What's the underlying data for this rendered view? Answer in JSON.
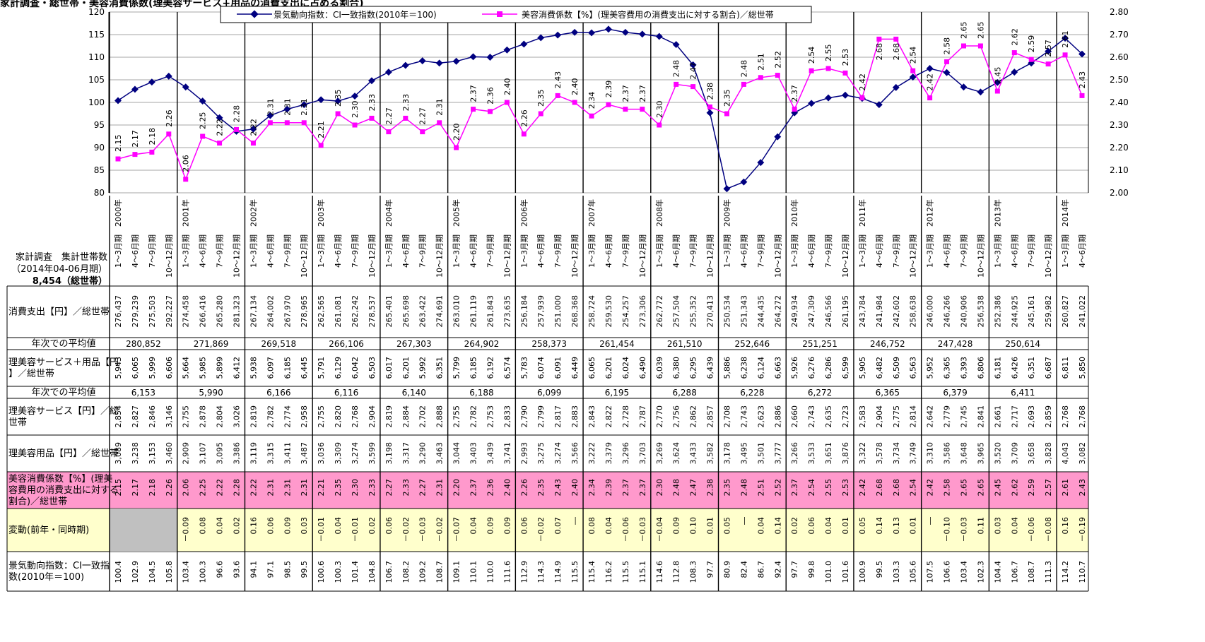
{
  "title": "家計調査・総世帯・美容消費係数(理美容サービス+用品の消費支出に占める割合)",
  "legend": {
    "series1": "景気動向指数：CI一致指数(2010年＝100)",
    "series2": "美容消費係数【%】(理美容費用の消費支出に対する割合)／総世帯"
  },
  "colors": {
    "series1": "#000080",
    "series2": "#FF00FF",
    "pink_row": "#FF99CC",
    "yellow_row": "#FFFFCC",
    "gray_cell": "#C0C0C0"
  },
  "chart_data": {
    "type": "line",
    "left_axis": {
      "min": 80,
      "max": 120,
      "ticks": [
        "80",
        "85",
        "90",
        "95",
        "100",
        "105",
        "110",
        "115",
        "120"
      ]
    },
    "right_axis": {
      "min": 2.0,
      "max": 2.8,
      "ticks": [
        "2.00",
        "2.10",
        "2.20",
        "2.30",
        "2.40",
        "2.50",
        "2.60",
        "2.70",
        "2.80"
      ]
    },
    "series": [
      {
        "name": "景気動向指数：CI一致指数(2010年＝100)",
        "axis": "left",
        "values": [
          100.4,
          102.9,
          104.5,
          105.8,
          103.4,
          100.3,
          96.6,
          93.6,
          94.1,
          97.1,
          98.5,
          99.5,
          100.6,
          100.3,
          101.4,
          104.8,
          106.7,
          108.2,
          109.2,
          108.7,
          109.1,
          110.1,
          110.0,
          111.6,
          112.9,
          114.3,
          114.9,
          115.5,
          115.4,
          116.2,
          115.5,
          115.1,
          114.6,
          112.8,
          108.3,
          97.7,
          80.9,
          82.4,
          86.7,
          92.4,
          97.7,
          99.8,
          101.0,
          101.6,
          100.9,
          99.5,
          103.3,
          105.6,
          107.5,
          106.6,
          103.4,
          102.3,
          104.4,
          106.7,
          108.7,
          111.3,
          114.2,
          110.7
        ]
      },
      {
        "name": "美容消費係数【%】(理美容費用の消費支出に対する割合)／総世帯",
        "axis": "right",
        "labels": [
          "2.15",
          "2.17",
          "2.18",
          "2.26",
          "2.06",
          "2.25",
          "2.22",
          "2.28",
          "2.22",
          "2.31",
          "2.31",
          "2.31",
          "2.21",
          "2.35",
          "2.30",
          "2.33",
          "2.27",
          "2.33",
          "2.27",
          "2.31",
          "2.20",
          "2.37",
          "2.36",
          "2.40",
          "2.26",
          "2.35",
          "2.43",
          "2.40",
          "2.34",
          "2.39",
          "2.37",
          "2.37",
          "2.30",
          "2.48",
          "2.47",
          "2.38",
          "2.35",
          "2.48",
          "2.51",
          "2.52",
          "2.37",
          "2.54",
          "2.55",
          "2.53",
          "2.42",
          "2.68",
          "2.68",
          "2.54",
          "2.42",
          "2.58",
          "2.65",
          "2.65",
          "2.45",
          "2.62",
          "2.59",
          "2.57",
          "2.61",
          "2.43"
        ],
        "values": [
          2.15,
          2.17,
          2.18,
          2.26,
          2.06,
          2.25,
          2.22,
          2.28,
          2.22,
          2.31,
          2.31,
          2.31,
          2.21,
          2.35,
          2.3,
          2.33,
          2.27,
          2.33,
          2.27,
          2.31,
          2.2,
          2.37,
          2.36,
          2.4,
          2.26,
          2.35,
          2.43,
          2.4,
          2.34,
          2.39,
          2.37,
          2.37,
          2.3,
          2.48,
          2.47,
          2.38,
          2.35,
          2.48,
          2.51,
          2.52,
          2.37,
          2.54,
          2.55,
          2.53,
          2.42,
          2.68,
          2.68,
          2.54,
          2.42,
          2.58,
          2.65,
          2.65,
          2.45,
          2.62,
          2.59,
          2.57,
          2.61,
          2.43
        ]
      }
    ]
  },
  "years": [
    "2000年",
    "2001年",
    "2002年",
    "2003年",
    "2004年",
    "2005年",
    "2006年",
    "2007年",
    "2008年",
    "2009年",
    "2010年",
    "2011年",
    "2012年",
    "2013年",
    "2014年"
  ],
  "quarters": [
    "1～3月期",
    "4～6月期",
    "7～9月期",
    "10～12月期"
  ],
  "header_label": {
    "line1": "家計調査　集計世帯数",
    "line2": "（2014年04-06月期）",
    "line3": "8,454（総世帯）"
  },
  "rows": {
    "spending": {
      "label": "消費支出【円】／総世帯",
      "values": [
        "276,437",
        "279,239",
        "275,503",
        "292,227",
        "274,458",
        "266,416",
        "265,280",
        "281,323",
        "267,134",
        "264,002",
        "267,970",
        "278,965",
        "262,565",
        "261,081",
        "262,242",
        "278,537",
        "265,401",
        "265,698",
        "263,422",
        "274,691",
        "263,010",
        "261,119",
        "261,843",
        "273,635",
        "256,184",
        "257,939",
        "251,000",
        "268,368",
        "258,724",
        "259,530",
        "254,257",
        "273,306",
        "262,772",
        "257,504",
        "255,352",
        "270,413",
        "250,534",
        "251,343",
        "244,435",
        "264,272",
        "249,934",
        "247,309",
        "246,566",
        "261,195",
        "243,784",
        "241,984",
        "242,602",
        "258,638",
        "246,000",
        "246,266",
        "240,906",
        "256,538",
        "252,386",
        "244,925",
        "245,161",
        "259,982",
        "260,827",
        "241,022"
      ]
    },
    "spending_avg": {
      "label": "年次での平均値",
      "values": [
        "280,852",
        "271,869",
        "269,518",
        "266,106",
        "267,303",
        "264,902",
        "258,373",
        "261,454",
        "261,510",
        "252,646",
        "251,251",
        "246,752",
        "247,428",
        "250,614"
      ]
    },
    "beauty_total": {
      "label": "理美容サービス＋用品【円】／総世帯",
      "values": [
        "5,943",
        "6,065",
        "5,999",
        "6,606",
        "5,664",
        "5,985",
        "5,899",
        "6,412",
        "5,938",
        "6,097",
        "6,185",
        "6,445",
        "5,791",
        "6,129",
        "6,042",
        "6,503",
        "6,017",
        "6,201",
        "5,992",
        "6,351",
        "5,799",
        "6,185",
        "6,192",
        "6,574",
        "5,783",
        "6,074",
        "6,091",
        "6,449",
        "6,065",
        "6,201",
        "6,024",
        "6,490",
        "6,039",
        "6,380",
        "6,295",
        "6,439",
        "5,886",
        "6,238",
        "6,124",
        "6,663",
        "5,926",
        "6,276",
        "6,286",
        "6,599",
        "5,905",
        "6,482",
        "6,509",
        "6,563",
        "5,952",
        "6,365",
        "6,393",
        "6,806",
        "6,181",
        "6,426",
        "6,351",
        "6,687",
        "6,811",
        "5,850"
      ]
    },
    "beauty_avg": {
      "label": "年次での平均値",
      "values": [
        "6,153",
        "5,990",
        "6,166",
        "6,116",
        "6,140",
        "6,188",
        "6,099",
        "6,195",
        "6,288",
        "6,228",
        "6,272",
        "6,365",
        "6,379",
        "6,411"
      ]
    },
    "service": {
      "label": "理美容サービス【円】／総世帯",
      "values": [
        "2,854",
        "2,827",
        "2,846",
        "3,146",
        "2,755",
        "2,878",
        "2,804",
        "3,026",
        "2,819",
        "2,782",
        "2,774",
        "2,958",
        "2,755",
        "2,820",
        "2,768",
        "2,904",
        "2,819",
        "2,884",
        "2,702",
        "2,888",
        "2,755",
        "2,782",
        "2,753",
        "2,833",
        "2,790",
        "2,799",
        "2,817",
        "2,883",
        "2,843",
        "2,822",
        "2,728",
        "2,787",
        "2,770",
        "2,756",
        "2,862",
        "2,857",
        "2,708",
        "2,743",
        "2,623",
        "2,886",
        "2,660",
        "2,743",
        "2,635",
        "2,723",
        "2,583",
        "2,904",
        "2,775",
        "2,814",
        "2,642",
        "2,779",
        "2,745",
        "2,841",
        "2,661",
        "2,717",
        "2,693",
        "2,859",
        "2,768",
        "2,768"
      ]
    },
    "goods": {
      "label": "理美容用品【円】／総世帯",
      "values": [
        "3,089",
        "3,238",
        "3,153",
        "3,460",
        "2,909",
        "3,107",
        "3,095",
        "3,386",
        "3,119",
        "3,315",
        "3,411",
        "3,487",
        "3,036",
        "3,309",
        "3,274",
        "3,599",
        "3,198",
        "3,317",
        "3,290",
        "3,463",
        "3,044",
        "3,403",
        "3,439",
        "3,741",
        "2,993",
        "3,275",
        "3,274",
        "3,566",
        "3,222",
        "3,379",
        "3,296",
        "3,703",
        "3,269",
        "3,624",
        "3,433",
        "3,582",
        "3,178",
        "3,495",
        "3,501",
        "3,777",
        "3,266",
        "3,533",
        "3,651",
        "3,876",
        "3,322",
        "3,578",
        "3,734",
        "3,749",
        "3,310",
        "3,586",
        "3,648",
        "3,965",
        "3,520",
        "3,709",
        "3,658",
        "3,828",
        "4,043",
        "3,082"
      ]
    },
    "ratio": {
      "label": "美容消費係数【%】(理美容費用の消費支出に対する割合)／総世帯",
      "values": [
        "2.15",
        "2.17",
        "2.18",
        "2.26",
        "2.06",
        "2.25",
        "2.22",
        "2.28",
        "2.22",
        "2.31",
        "2.31",
        "2.31",
        "2.21",
        "2.35",
        "2.30",
        "2.33",
        "2.27",
        "2.33",
        "2.27",
        "2.31",
        "2.20",
        "2.37",
        "2.36",
        "2.40",
        "2.26",
        "2.35",
        "2.43",
        "2.40",
        "2.34",
        "2.39",
        "2.37",
        "2.37",
        "2.30",
        "2.48",
        "2.47",
        "2.38",
        "2.35",
        "2.48",
        "2.51",
        "2.52",
        "2.37",
        "2.54",
        "2.55",
        "2.53",
        "2.42",
        "2.68",
        "2.68",
        "2.54",
        "2.42",
        "2.58",
        "2.65",
        "2.65",
        "2.45",
        "2.62",
        "2.59",
        "2.57",
        "2.61",
        "2.43"
      ]
    },
    "change": {
      "label": "変動(前年・同時期)",
      "values": [
        "",
        "",
        "",
        "",
        "－0.09",
        "0.08",
        "0.04",
        "0.02",
        "0.16",
        "0.06",
        "0.09",
        "0.03",
        "－0.01",
        "0.04",
        "－0.01",
        "0.02",
        "0.06",
        "－0.02",
        "－0.03",
        "－0.02",
        "－0.07",
        "0.04",
        "0.09",
        "0.09",
        "0.06",
        "－0.02",
        "0.07",
        "―",
        "0.08",
        "0.04",
        "－0.06",
        "－0.03",
        "－0.04",
        "0.09",
        "0.10",
        "0.01",
        "0.05",
        "―",
        "0.04",
        "0.14",
        "0.02",
        "0.06",
        "0.04",
        "0.01",
        "0.05",
        "0.14",
        "0.13",
        "0.01",
        "―",
        "－0.10",
        "－0.03",
        "0.11",
        "0.03",
        "0.04",
        "－0.06",
        "－0.08",
        "0.16",
        "－0.19"
      ]
    },
    "ci": {
      "label": "景気動向指数：CI一致指数(2010年＝100)",
      "values": [
        "100.4",
        "102.9",
        "104.5",
        "105.8",
        "103.4",
        "100.3",
        "96.6",
        "93.6",
        "94.1",
        "97.1",
        "98.5",
        "99.5",
        "100.6",
        "100.3",
        "101.4",
        "104.8",
        "106.7",
        "108.2",
        "109.2",
        "108.7",
        "109.1",
        "110.1",
        "110.0",
        "111.6",
        "112.9",
        "114.3",
        "114.9",
        "115.5",
        "115.4",
        "116.2",
        "115.5",
        "115.1",
        "114.6",
        "112.8",
        "108.3",
        "97.7",
        "80.9",
        "82.4",
        "86.7",
        "92.4",
        "97.7",
        "99.8",
        "101.0",
        "101.6",
        "100.9",
        "99.5",
        "103.3",
        "105.6",
        "107.5",
        "106.6",
        "103.4",
        "102.3",
        "104.4",
        "106.7",
        "108.7",
        "111.3",
        "114.2",
        "110.7"
      ]
    }
  }
}
